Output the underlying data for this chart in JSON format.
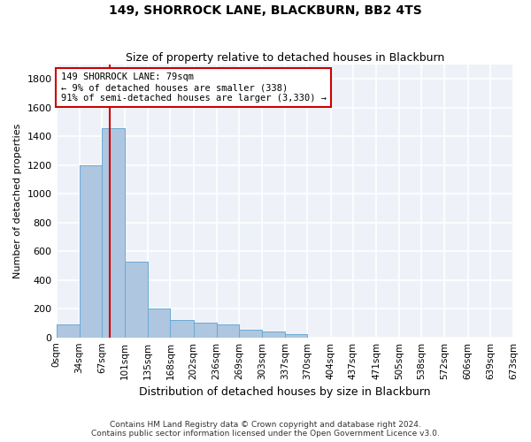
{
  "title": "149, SHORROCK LANE, BLACKBURN, BB2 4TS",
  "subtitle": "Size of property relative to detached houses in Blackburn",
  "xlabel": "Distribution of detached houses by size in Blackburn",
  "ylabel": "Number of detached properties",
  "bar_color": "#aec6df",
  "bar_edge_color": "#6aaad4",
  "background_color": "#eef2f8",
  "grid_color": "white",
  "bin_edges": [
    0,
    34,
    67,
    101,
    135,
    168,
    202,
    236,
    269,
    303,
    337,
    370,
    404,
    437,
    471,
    505,
    538,
    572,
    606,
    639,
    673
  ],
  "bin_labels": [
    "0sqm",
    "34sqm",
    "67sqm",
    "101sqm",
    "135sqm",
    "168sqm",
    "202sqm",
    "236sqm",
    "269sqm",
    "303sqm",
    "337sqm",
    "370sqm",
    "404sqm",
    "437sqm",
    "471sqm",
    "505sqm",
    "538sqm",
    "572sqm",
    "606sqm",
    "639sqm",
    "673sqm"
  ],
  "bar_values": [
    90,
    1200,
    1460,
    530,
    200,
    120,
    105,
    90,
    55,
    40,
    20,
    0,
    0,
    0,
    0,
    0,
    0,
    0,
    0,
    0
  ],
  "ylim": [
    0,
    1900
  ],
  "yticks": [
    0,
    200,
    400,
    600,
    800,
    1000,
    1200,
    1400,
    1600,
    1800
  ],
  "property_sqm": 79,
  "annotation_line1": "149 SHORROCK LANE: 79sqm",
  "annotation_line2": "← 9% of detached houses are smaller (338)",
  "annotation_line3": "91% of semi-detached houses are larger (3,330) →",
  "red_line_color": "#cc0000",
  "annotation_box_facecolor": "#ffffff",
  "annotation_box_edgecolor": "#cc0000",
  "footer_line1": "Contains HM Land Registry data © Crown copyright and database right 2024.",
  "footer_line2": "Contains public sector information licensed under the Open Government Licence v3.0."
}
